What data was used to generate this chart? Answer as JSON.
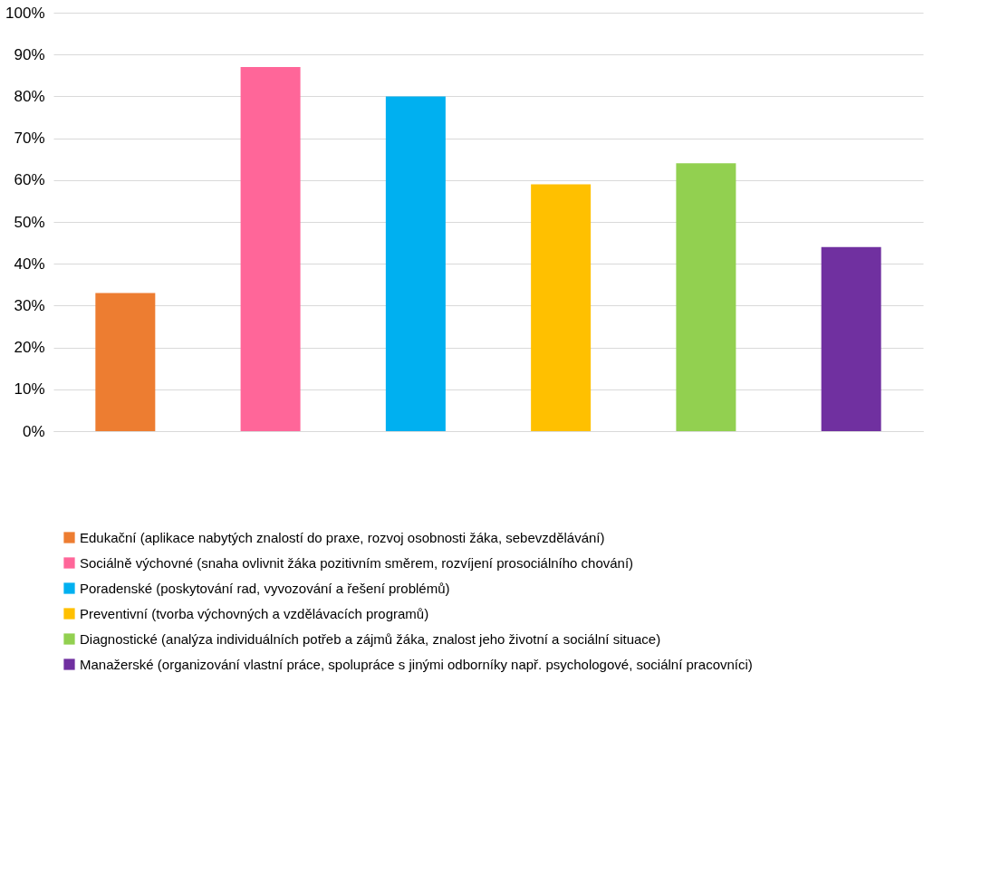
{
  "chart_data": {
    "type": "bar",
    "categories": [
      null,
      null,
      null,
      null,
      null,
      null
    ],
    "series": [
      {
        "name": "Edukační (aplikace nabytých znalostí do praxe, rozvoj osobnosti žáka, sebevzdělávání)",
        "color": "#ed7d31",
        "values": [
          33,
          null,
          null,
          null,
          null,
          null
        ]
      },
      {
        "name": "Sociálně výchovné (snaha ovlivnit žáka pozitivním směrem, rozvíjení prosociálního chování)",
        "color": "#ff6699",
        "values": [
          null,
          87,
          null,
          null,
          null,
          null
        ]
      },
      {
        "name": "Poradenské (poskytování rad, vyvozování a řešení problémů)",
        "color": "#00b0f0",
        "values": [
          null,
          null,
          80,
          null,
          null,
          null
        ]
      },
      {
        "name": "Preventivní (tvorba výchovných a vzdělávacích programů)",
        "color": "#ffc000",
        "values": [
          null,
          null,
          null,
          59,
          null,
          null
        ]
      },
      {
        "name": "Diagnostické (analýza individuálních potřeb a zájmů žáka, znalost jeho životní a sociální situace)",
        "color": "#92d050",
        "values": [
          null,
          null,
          null,
          null,
          64,
          null
        ]
      },
      {
        "name": "Manažerské (organizování vlastní práce, spolupráce s jinými odborníky např. psychologové, sociální pracovníci)",
        "color": "#7030a0",
        "values": [
          null,
          null,
          null,
          null,
          null,
          44
        ]
      }
    ],
    "ylim": [
      0,
      100
    ],
    "yticks": [
      {
        "value": 0,
        "label": "0%"
      },
      {
        "value": 10,
        "label": "10%"
      },
      {
        "value": 20,
        "label": "20%"
      },
      {
        "value": 30,
        "label": "30%"
      },
      {
        "value": 40,
        "label": "40%"
      },
      {
        "value": 50,
        "label": "50%"
      },
      {
        "value": 60,
        "label": "60%"
      },
      {
        "value": 70,
        "label": "70%"
      },
      {
        "value": 80,
        "label": "80%"
      },
      {
        "value": 90,
        "label": "90%"
      },
      {
        "value": 100,
        "label": "100%"
      }
    ],
    "grid": "y",
    "legend": "bottom",
    "tick_labels": "y"
  }
}
